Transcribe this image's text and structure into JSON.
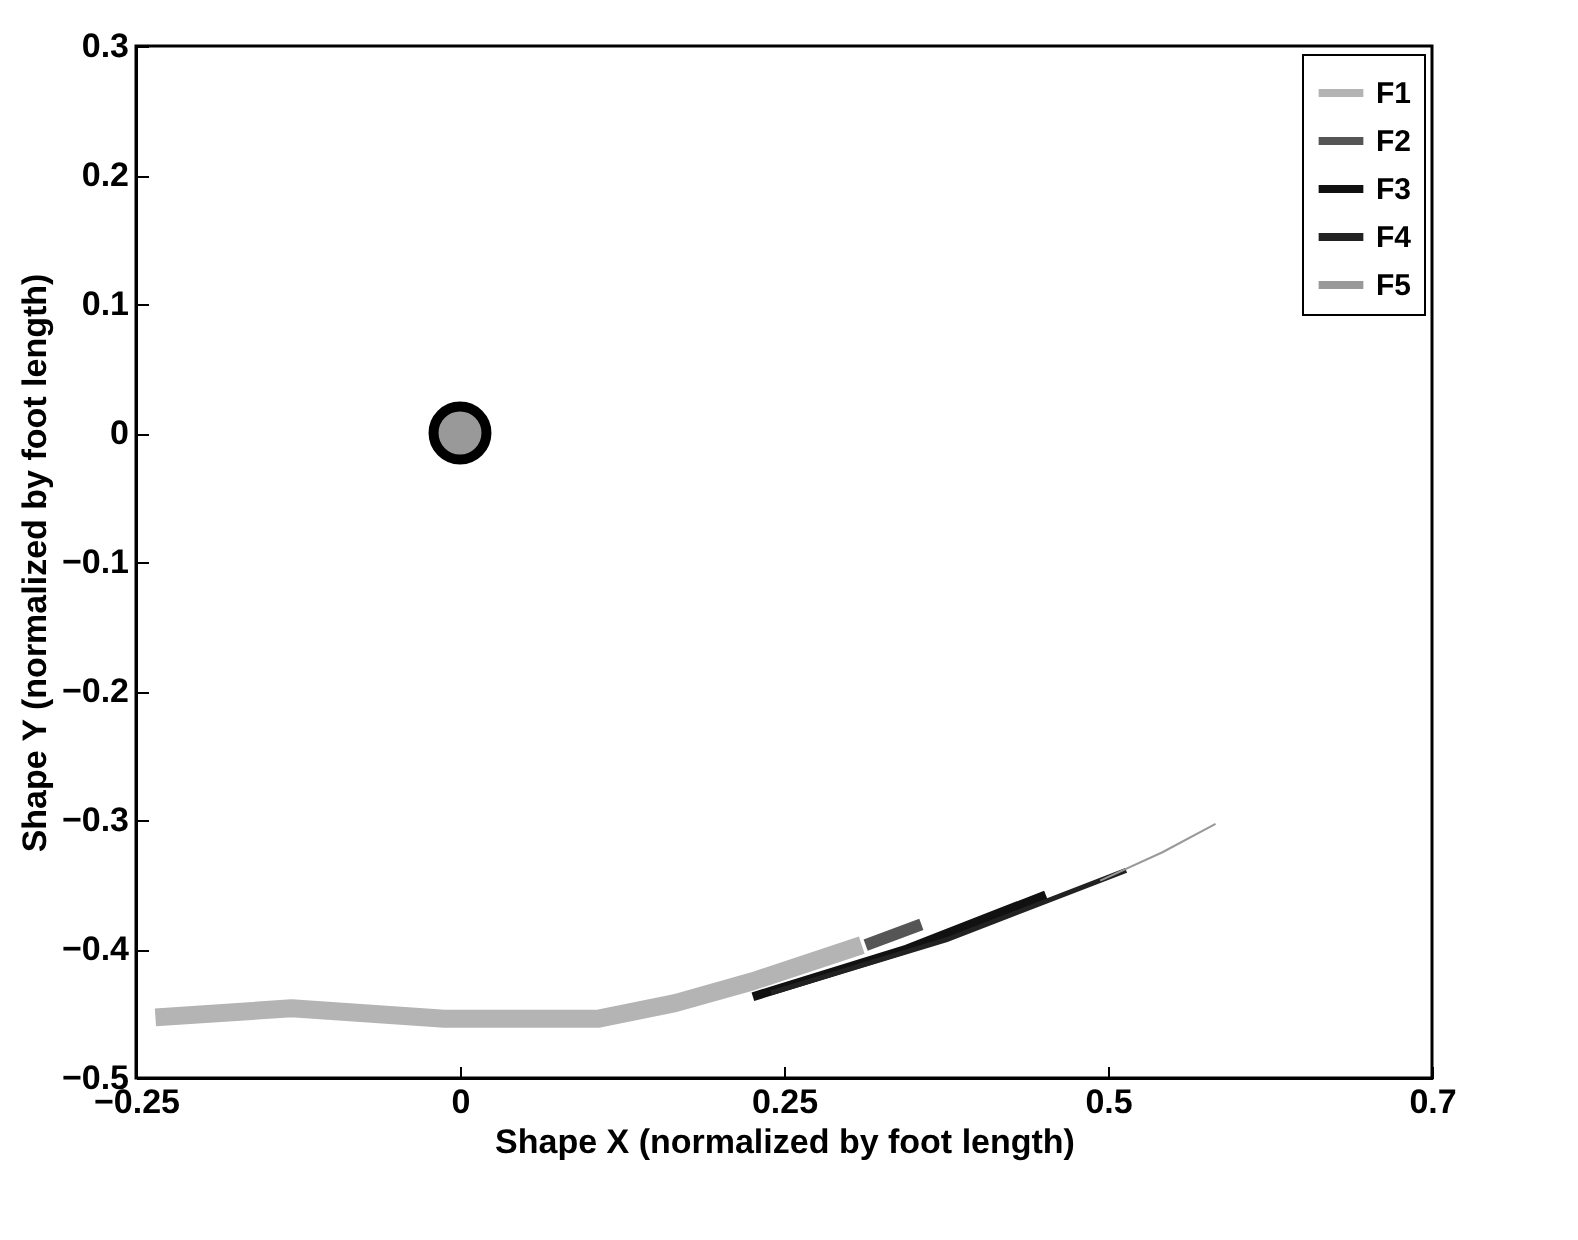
{
  "chart_data": {
    "type": "line",
    "xlabel": "Shape X (normalized by foot length)",
    "ylabel": "Shape Y (normalized by foot length)",
    "xlim": [
      -0.25,
      0.75
    ],
    "xticks": [
      -0.25,
      0,
      0.25,
      0.5,
      {
        "value": 0.75,
        "label": "0.7"
      }
    ],
    "ylim": [
      -0.5,
      0.3
    ],
    "yticks": [
      -0.5,
      -0.4,
      -0.3,
      -0.2,
      -0.1,
      0,
      0.1,
      0.2,
      0.3
    ],
    "grid": false,
    "legend": "top right",
    "series": [
      {
        "name": "F1",
        "color": "#b4b4b4",
        "x": [
          -0.235,
          -0.13,
          -0.012,
          0.107,
          0.166,
          0.226,
          0.31
        ],
        "values": [
          -0.453,
          -0.446,
          -0.454,
          -0.454,
          -0.442,
          -0.425,
          -0.397
        ]
      },
      {
        "name": "F2",
        "color": "#555555",
        "x": [
          0.313,
          0.356
        ],
        "values": [
          -0.397,
          -0.381
        ]
      },
      {
        "name": "F3",
        "color": "#111111",
        "x": [
          0.226,
          0.345,
          0.452
        ],
        "values": [
          -0.437,
          -0.4,
          -0.358
        ]
      },
      {
        "name": "F4",
        "color": "#222222",
        "x": [
          0.24,
          0.375,
          0.514
        ],
        "values": [
          -0.434,
          -0.393,
          -0.339
        ]
      },
      {
        "name": "F5",
        "color": "#999999",
        "x": [
          0.494,
          0.542,
          0.583
        ],
        "values": [
          -0.347,
          -0.325,
          -0.303
        ]
      },
      {
        "type": "scatter",
        "marker": "circle",
        "color": "#999999",
        "x": [
          0
        ],
        "values": [
          0
        ]
      }
    ]
  }
}
